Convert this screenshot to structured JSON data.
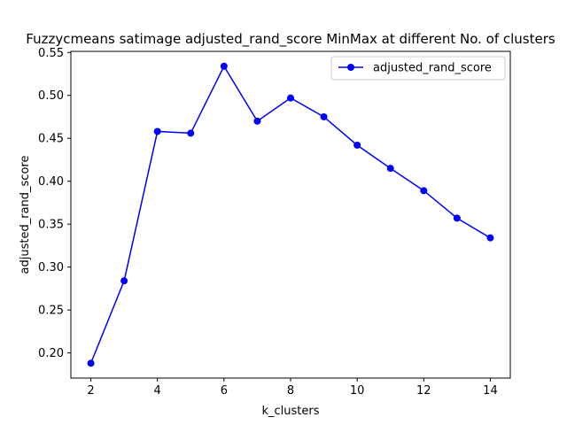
{
  "chart_data": {
    "type": "line",
    "title": "Fuzzycmeans satimage adjusted_rand_score MinMax at different No. of clusters",
    "xlabel": "k_clusters",
    "ylabel": "adjusted_rand_score",
    "x": [
      2,
      3,
      4,
      5,
      6,
      7,
      8,
      9,
      10,
      11,
      12,
      13,
      14
    ],
    "series": [
      {
        "name": "adjusted_rand_score",
        "values": [
          0.188,
          0.284,
          0.458,
          0.456,
          0.534,
          0.47,
          0.497,
          0.475,
          0.442,
          0.415,
          0.389,
          0.357,
          0.334
        ],
        "color": "#0000ff",
        "marker": "circle"
      }
    ],
    "xlim": [
      1.4,
      14.6
    ],
    "ylim": [
      0.1707,
      0.5513
    ],
    "xticks": [
      2,
      4,
      6,
      8,
      10,
      12,
      14
    ],
    "xtick_labels": [
      "2",
      "4",
      "6",
      "8",
      "10",
      "12",
      "14"
    ],
    "yticks": [
      0.2,
      0.25,
      0.3,
      0.35,
      0.4,
      0.45,
      0.5,
      0.55
    ],
    "ytick_labels": [
      "0.20",
      "0.25",
      "0.30",
      "0.35",
      "0.40",
      "0.45",
      "0.50",
      "0.55"
    ],
    "grid": false,
    "legend_position": "top-right"
  }
}
